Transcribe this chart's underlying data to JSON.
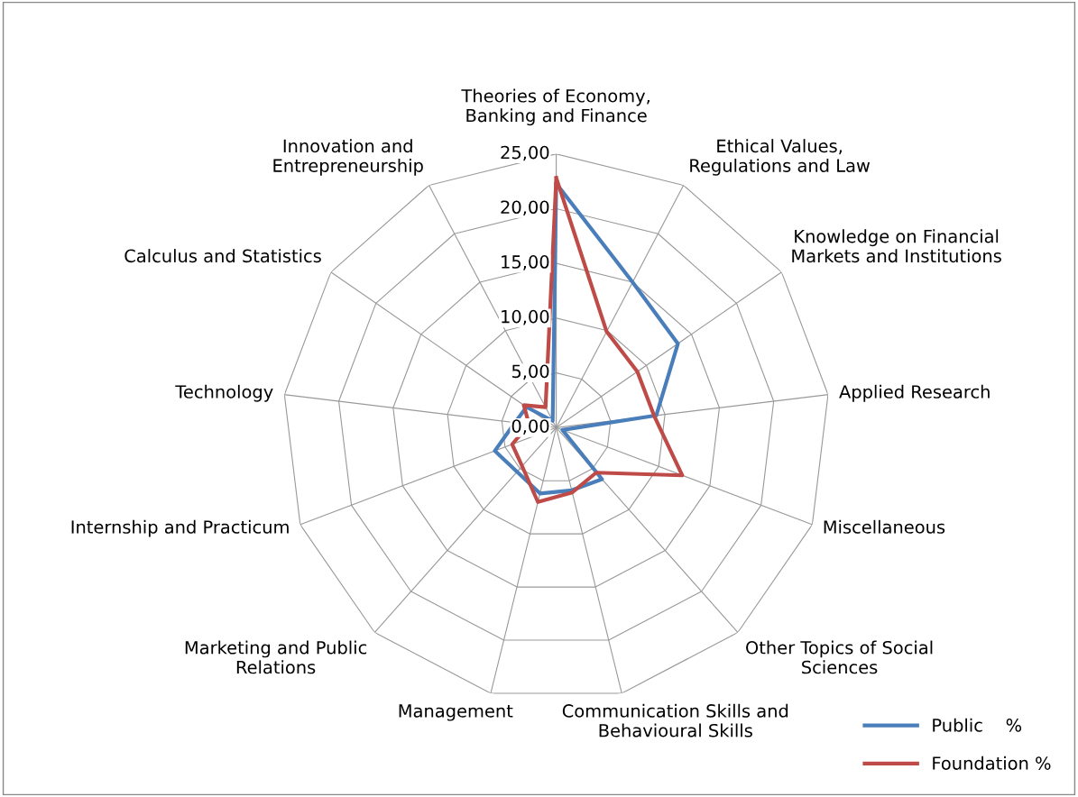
{
  "chart_data": {
    "type": "radar",
    "categories": [
      "Theories of Economy,\nBanking and Finance",
      "Ethical Values,\nRegulations and Law",
      "Knowledge on Financial\nMarkets and Institutions",
      "Applied Research",
      "Miscellaneous",
      "Other Topics of Social\nSciences",
      "Communication Skills and\nBehavioural Skills",
      "Management",
      "Marketing and Public\nRelations",
      "Internship and Practicum",
      "Technology",
      "Calculus and Statistics",
      "Innovation and\nEntrepreneurship"
    ],
    "series": [
      {
        "name": "Public    %",
        "color": "#4a7ebb",
        "values": [
          22.3,
          15.0,
          13.5,
          9.2,
          0.6,
          6.3,
          5.9,
          6.2,
          5.4,
          6.0,
          3.8,
          3.3,
          0.7
        ]
      },
      {
        "name": "Foundation %",
        "color": "#be4b48",
        "values": [
          22.8,
          9.9,
          9.0,
          9.0,
          12.3,
          5.5,
          6.1,
          7.0,
          4.7,
          4.3,
          2.5,
          3.6,
          2.1
        ]
      }
    ],
    "ylim": [
      0,
      25
    ],
    "yticks": [
      {
        "value": 0,
        "label": "0,00"
      },
      {
        "value": 5,
        "label": "5,00"
      },
      {
        "value": 10,
        "label": "10,00"
      },
      {
        "value": 15,
        "label": "15,00"
      },
      {
        "value": 20,
        "label": "20,00"
      },
      {
        "value": 25,
        "label": "25,00"
      }
    ],
    "grid": true,
    "legend": "bottom right",
    "marker": "none",
    "line_style": "solid"
  }
}
